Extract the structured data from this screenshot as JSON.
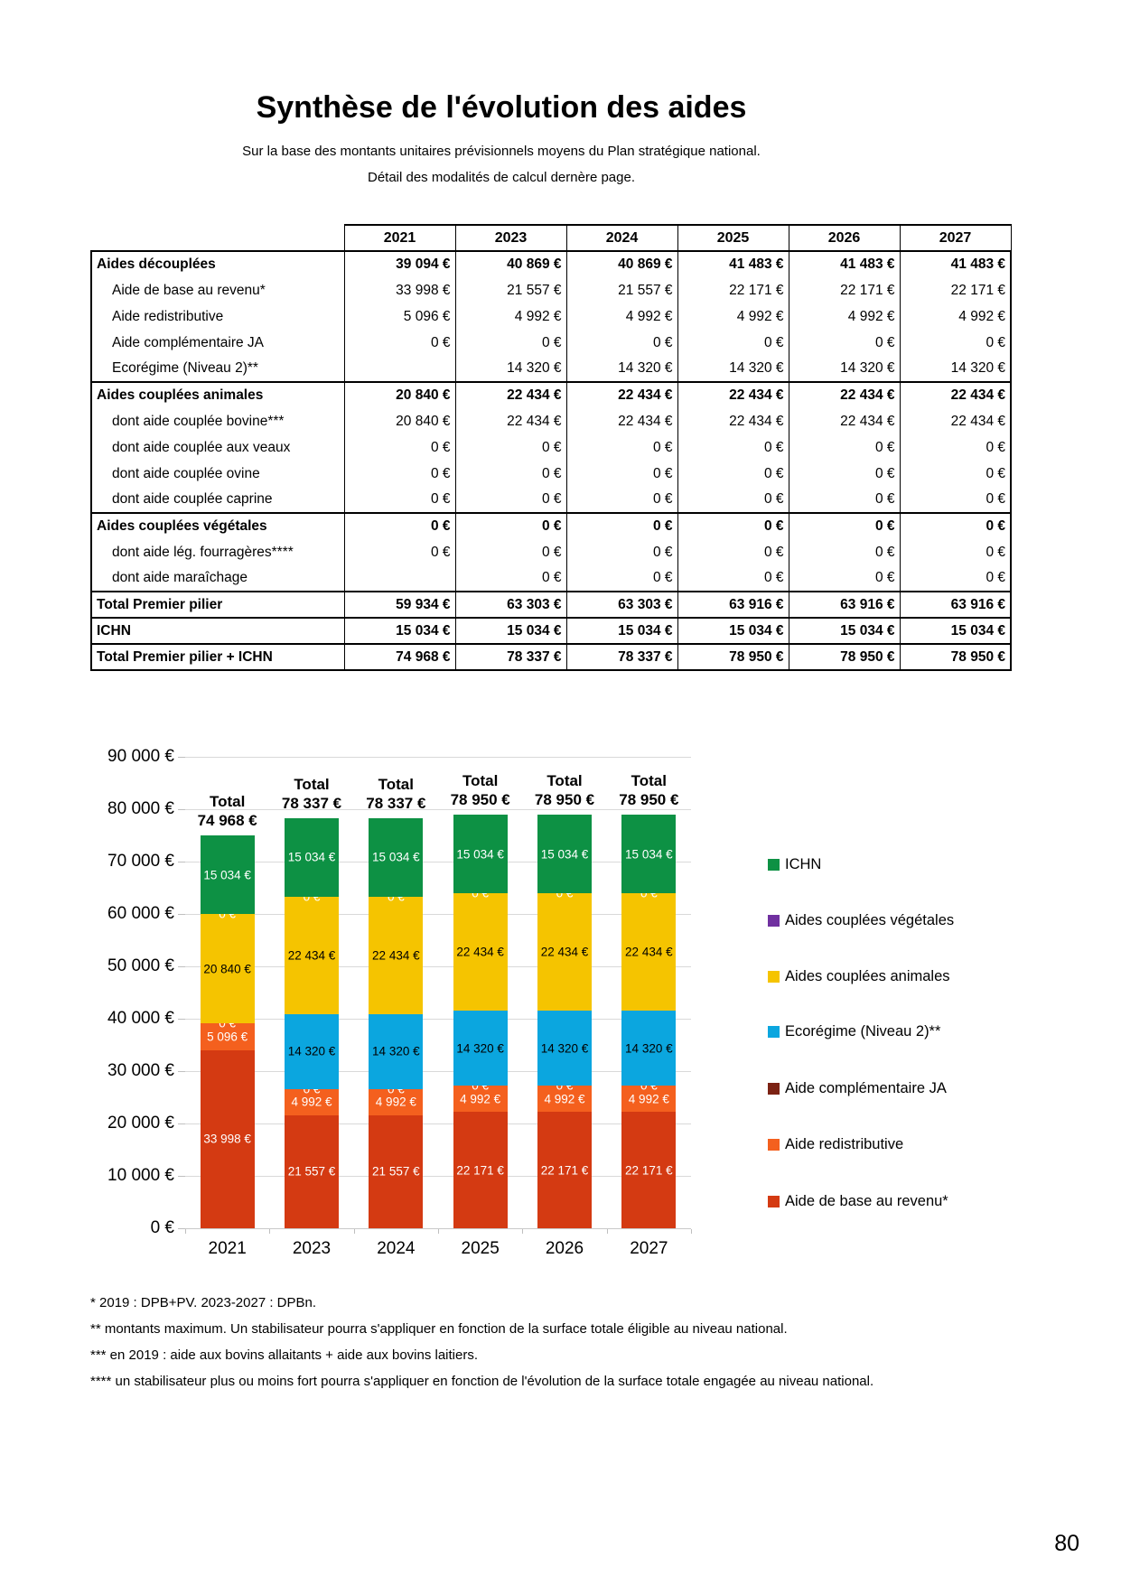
{
  "page": {
    "title": "Synthèse de l'évolution des aides",
    "subtitle_line1": "Sur la base des montants unitaires prévisionnels moyens du Plan stratégique national.",
    "subtitle_line2": "Détail des modalités de calcul dernère page.",
    "page_number": "80"
  },
  "table": {
    "years": [
      "2021",
      "2023",
      "2024",
      "2025",
      "2026",
      "2027"
    ],
    "rows": [
      {
        "label": "Aides découplées",
        "bold": true,
        "section_start": true,
        "indent": false,
        "values": [
          "39 094 €",
          "40 869 €",
          "40 869 €",
          "41 483 €",
          "41 483 €",
          "41 483 €"
        ]
      },
      {
        "label": "Aide de base au revenu*",
        "bold": false,
        "section_start": false,
        "indent": true,
        "values": [
          "33 998 €",
          "21 557 €",
          "21 557 €",
          "22 171 €",
          "22 171 €",
          "22 171 €"
        ]
      },
      {
        "label": "Aide redistributive",
        "bold": false,
        "section_start": false,
        "indent": true,
        "values": [
          "5 096 €",
          "4 992 €",
          "4 992 €",
          "4 992 €",
          "4 992 €",
          "4 992 €"
        ]
      },
      {
        "label": "Aide complémentaire JA",
        "bold": false,
        "section_start": false,
        "indent": true,
        "values": [
          "0 €",
          "0 €",
          "0 €",
          "0 €",
          "0 €",
          "0 €"
        ]
      },
      {
        "label": "Ecorégime (Niveau 2)**",
        "bold": false,
        "section_start": false,
        "indent": true,
        "values": [
          "",
          "14 320 €",
          "14 320 €",
          "14 320 €",
          "14 320 €",
          "14 320 €"
        ]
      },
      {
        "label": "Aides couplées animales",
        "bold": true,
        "section_start": true,
        "indent": false,
        "values": [
          "20 840 €",
          "22 434 €",
          "22 434 €",
          "22 434 €",
          "22 434 €",
          "22 434 €"
        ]
      },
      {
        "label": "dont aide couplée bovine***",
        "bold": false,
        "section_start": false,
        "indent": true,
        "values": [
          "20 840 €",
          "22 434 €",
          "22 434 €",
          "22 434 €",
          "22 434 €",
          "22 434 €"
        ]
      },
      {
        "label": "dont aide couplée aux veaux",
        "bold": false,
        "section_start": false,
        "indent": true,
        "values": [
          "0 €",
          "0 €",
          "0 €",
          "0 €",
          "0 €",
          "0 €"
        ]
      },
      {
        "label": "dont aide couplée ovine",
        "bold": false,
        "section_start": false,
        "indent": true,
        "values": [
          "0 €",
          "0 €",
          "0 €",
          "0 €",
          "0 €",
          "0 €"
        ]
      },
      {
        "label": "dont aide couplée caprine",
        "bold": false,
        "section_start": false,
        "indent": true,
        "values": [
          "0 €",
          "0 €",
          "0 €",
          "0 €",
          "0 €",
          "0 €"
        ]
      },
      {
        "label": "Aides couplées végétales",
        "bold": true,
        "section_start": true,
        "indent": false,
        "values": [
          "0 €",
          "0 €",
          "0 €",
          "0 €",
          "0 €",
          "0 €"
        ]
      },
      {
        "label": "dont aide lég. fourragères****",
        "bold": false,
        "section_start": false,
        "indent": true,
        "values": [
          "0 €",
          "0 €",
          "0 €",
          "0 €",
          "0 €",
          "0 €"
        ]
      },
      {
        "label": "dont aide maraîchage",
        "bold": false,
        "section_start": false,
        "indent": true,
        "values": [
          "",
          "0 €",
          "0 €",
          "0 €",
          "0 €",
          "0 €"
        ]
      },
      {
        "label": "Total Premier pilier",
        "bold": true,
        "section_start": true,
        "indent": false,
        "values": [
          "59 934 €",
          "63 303 €",
          "63 303 €",
          "63 916 €",
          "63 916 €",
          "63 916 €"
        ]
      },
      {
        "label": "ICHN",
        "bold": true,
        "section_start": true,
        "indent": false,
        "values": [
          "15 034 €",
          "15 034 €",
          "15 034 €",
          "15 034 €",
          "15 034 €",
          "15 034 €"
        ]
      },
      {
        "label": "Total Premier pilier + ICHN",
        "bold": true,
        "section_start": true,
        "indent": false,
        "values": [
          "74 968 €",
          "78 337 €",
          "78 337 €",
          "78 950 €",
          "78 950 €",
          "78 950 €"
        ]
      }
    ]
  },
  "chart_data": {
    "type": "bar",
    "stacked": true,
    "grid": true,
    "legend_position": "right",
    "categories": [
      "2021",
      "2023",
      "2024",
      "2025",
      "2026",
      "2027"
    ],
    "ylim": [
      0,
      90000
    ],
    "y_ticks": [
      "90 000 €",
      "80 000 €",
      "70 000 €",
      "60 000 €",
      "50 000 €",
      "40 000 €",
      "30 000 €",
      "20 000 €",
      "10 000 €",
      "0 €"
    ],
    "series": [
      {
        "name": "Aide de base au revenu*",
        "color": "#D43A12",
        "label_color": "#FFFFFF",
        "values": [
          33998,
          21557,
          21557,
          22171,
          22171,
          22171
        ],
        "labels": [
          "33 998 €",
          "21 557 €",
          "21 557 €",
          "22 171 €",
          "22 171 €",
          "22 171 €"
        ]
      },
      {
        "name": "Aide redistributive",
        "color": "#F4601E",
        "label_color": "#FFFFFF",
        "values": [
          5096,
          4992,
          4992,
          4992,
          4992,
          4992
        ],
        "labels": [
          "5 096 €",
          "4 992 €",
          "4 992 €",
          "4 992 €",
          "4 992 €",
          "4 992 €"
        ]
      },
      {
        "name": "Aide complémentaire JA",
        "color": "#7C2213",
        "label_color": "#FFFFFF",
        "values": [
          0,
          0,
          0,
          0,
          0,
          0
        ],
        "labels": [
          "0 €",
          "0 €",
          "0 €",
          "0 €",
          "0 €",
          "0 €"
        ]
      },
      {
        "name": "Ecorégime (Niveau 2)**",
        "color": "#0BA6DF",
        "label_color": "#000000",
        "values": [
          null,
          14320,
          14320,
          14320,
          14320,
          14320
        ],
        "labels": [
          null,
          "14 320 €",
          "14 320 €",
          "14 320 €",
          "14 320 €",
          "14 320 €"
        ]
      },
      {
        "name": "Aides couplées animales",
        "color": "#F5C400",
        "label_color": "#000000",
        "values": [
          20840,
          22434,
          22434,
          22434,
          22434,
          22434
        ],
        "labels": [
          "20 840 €",
          "22 434 €",
          "22 434 €",
          "22 434 €",
          "22 434 €",
          "22 434 €"
        ]
      },
      {
        "name": "Aides couplées végétales",
        "color": "#7030A0",
        "label_color": "#FFFFFF",
        "values": [
          0,
          0,
          0,
          0,
          0,
          0
        ],
        "labels": [
          "0 €",
          "0 €",
          "0 €",
          "0 €",
          "0 €",
          "0 €"
        ]
      },
      {
        "name": "ICHN",
        "color": "#0D9144",
        "label_color": "#FFFFFF",
        "values": [
          15034,
          15034,
          15034,
          15034,
          15034,
          15034
        ],
        "labels": [
          "15 034 €",
          "15 034 €",
          "15 034 €",
          "15 034 €",
          "15 034 €",
          "15 034 €"
        ]
      }
    ],
    "total_prefix": "Total",
    "totals": [
      "74 968 €",
      "78 337 €",
      "78 337 €",
      "78 950 €",
      "78 950 €",
      "78 950 €"
    ]
  },
  "legend": {
    "items": [
      {
        "label": "ICHN",
        "color": "#0D9144"
      },
      {
        "label": "Aides couplées végétales",
        "color": "#7030A0"
      },
      {
        "label": "Aides couplées animales",
        "color": "#F5C400"
      },
      {
        "label": "Ecorégime (Niveau 2)**",
        "color": "#0BA6DF"
      },
      {
        "label": "Aide complémentaire JA",
        "color": "#7C2213"
      },
      {
        "label": "Aide redistributive",
        "color": "#F4601E"
      },
      {
        "label": "Aide de base au revenu*",
        "color": "#D43A12"
      }
    ]
  },
  "footnotes": [
    "* 2019 : DPB+PV. 2023-2027 : DPBn.",
    "** montants maximum. Un stabilisateur pourra s'appliquer en fonction de la surface totale éligible au niveau national.",
    "*** en 2019 : aide aux bovins allaitants + aide aux bovins laitiers.",
    "**** un stabilisateur plus ou moins fort pourra s'appliquer en fonction de l'évolution de la surface totale engagée au niveau national."
  ]
}
